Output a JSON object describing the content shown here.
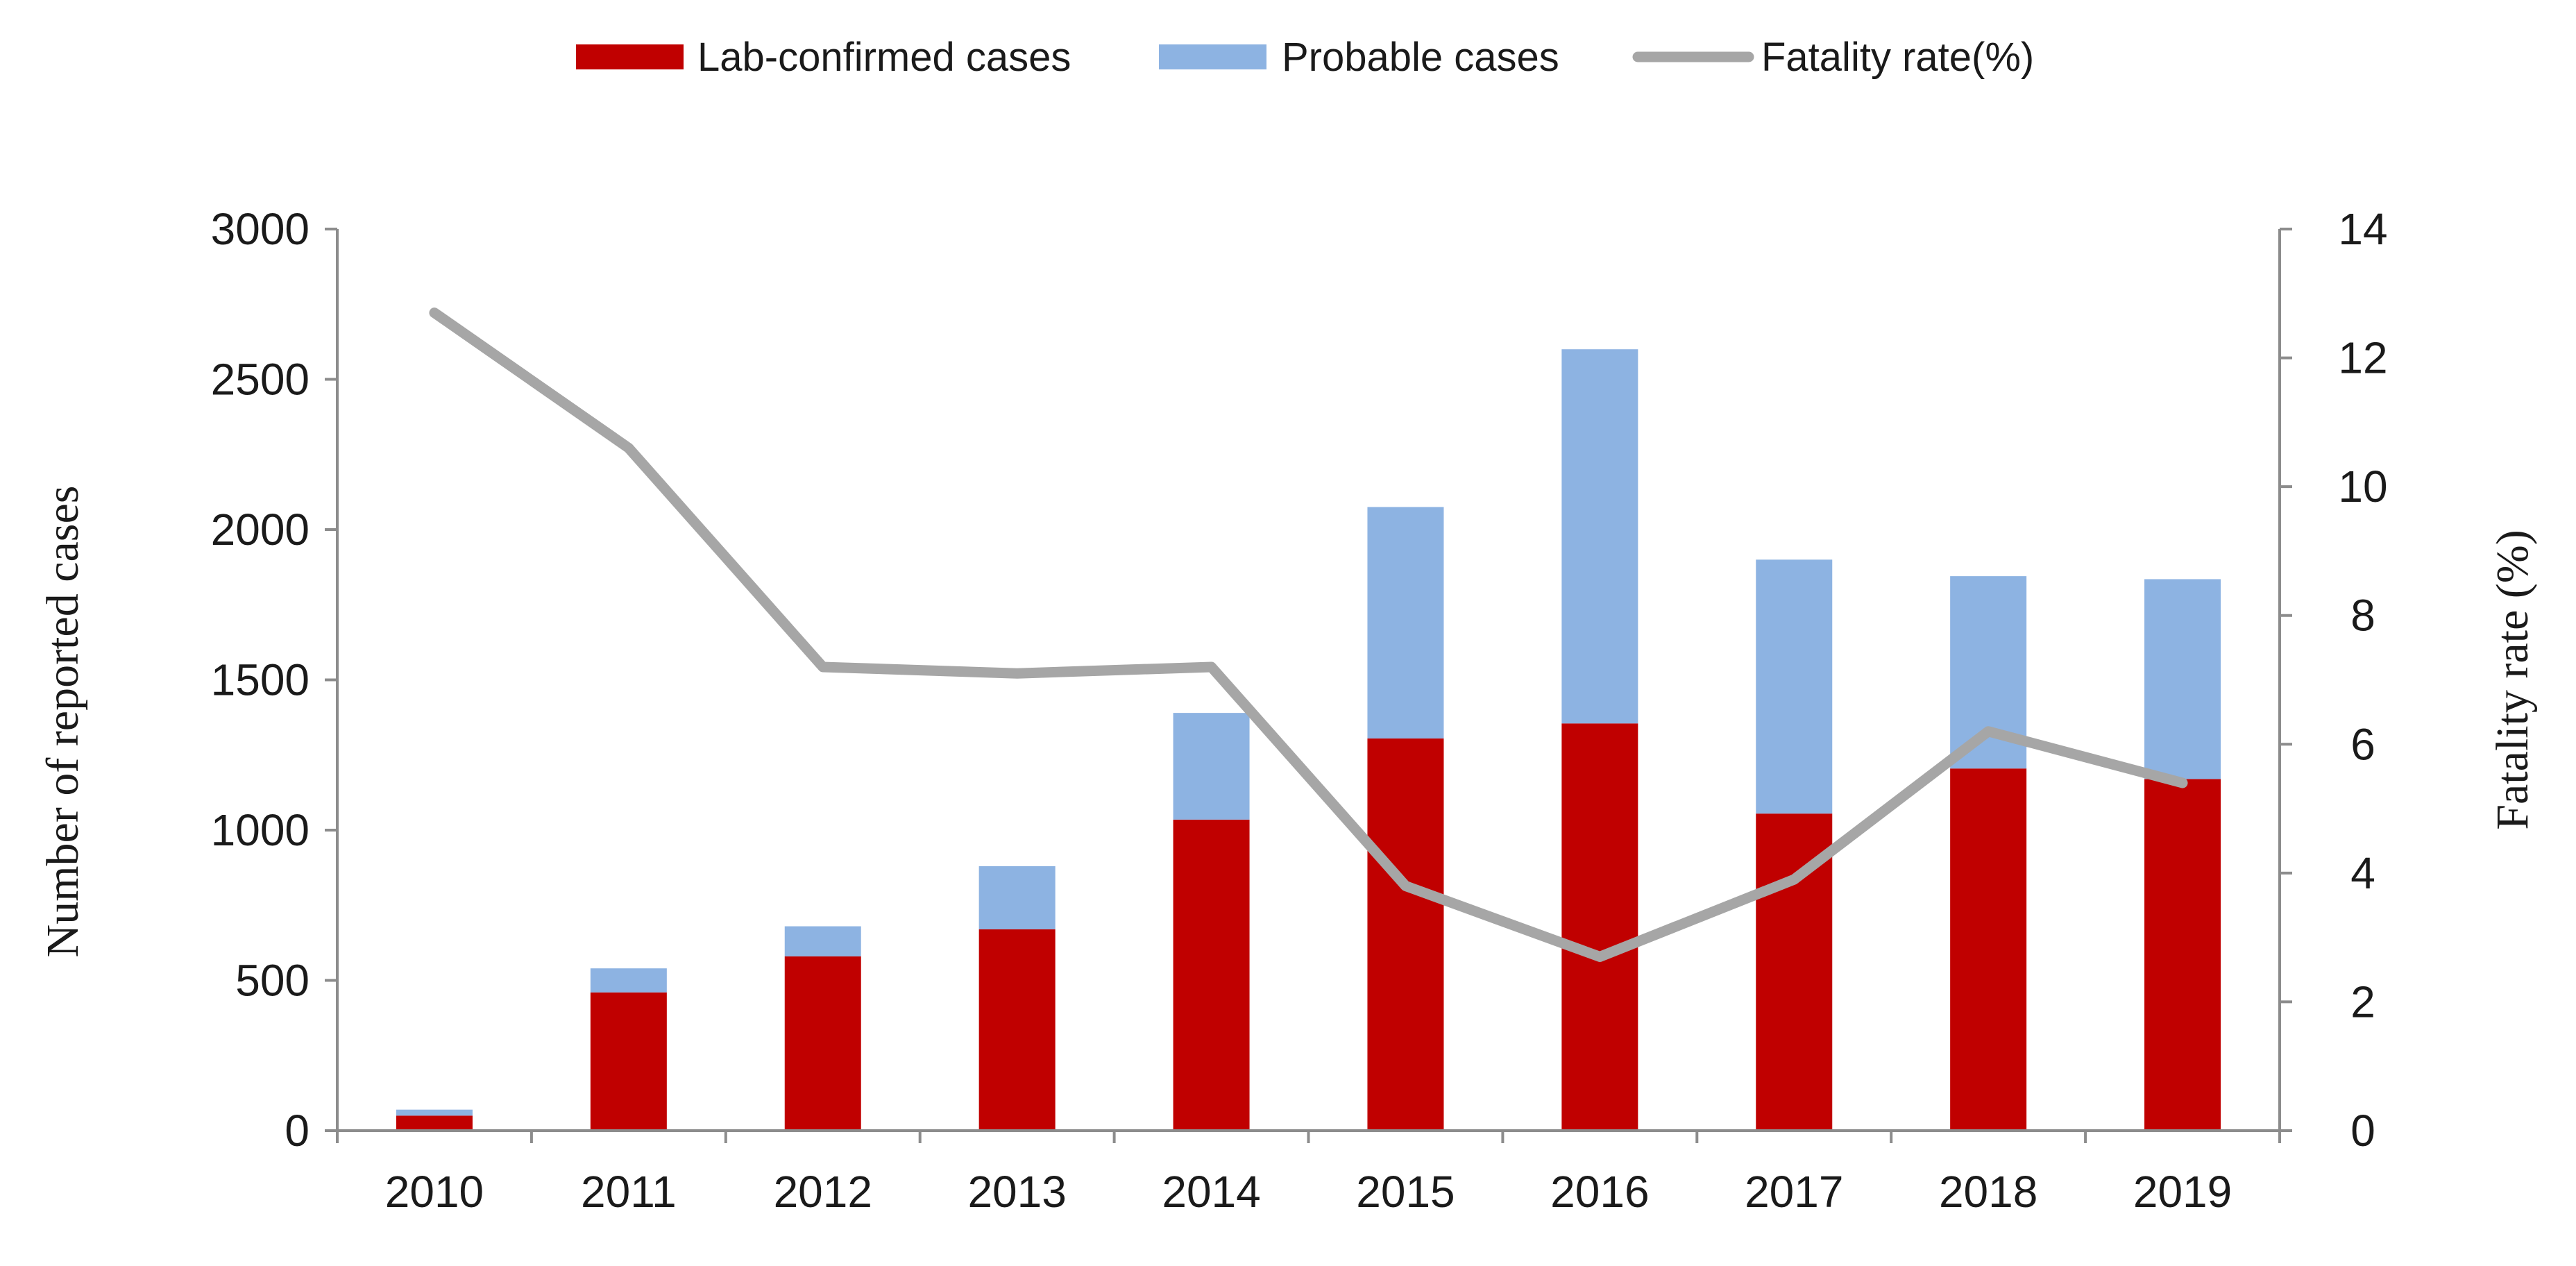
{
  "chart_data": {
    "type": "bar",
    "stacked": true,
    "categories": [
      "2010",
      "2011",
      "2012",
      "2013",
      "2014",
      "2015",
      "2016",
      "2017",
      "2018",
      "2019"
    ],
    "series": [
      {
        "name": "Lab-confirmed cases",
        "kind": "bar",
        "axis": "left",
        "color": "#C00000",
        "values": [
          50,
          460,
          580,
          670,
          1035,
          1305,
          1355,
          1055,
          1205,
          1170
        ]
      },
      {
        "name": "Probable cases",
        "kind": "bar",
        "axis": "left",
        "color": "#8DB3E2",
        "values": [
          20,
          80,
          100,
          210,
          355,
          770,
          1245,
          845,
          640,
          665
        ]
      },
      {
        "name": "Fatality rate(%)",
        "kind": "line",
        "axis": "right",
        "color": "#A6A6A6",
        "values": [
          12.7,
          10.6,
          7.2,
          7.1,
          7.2,
          3.8,
          2.7,
          3.9,
          6.2,
          5.4
        ]
      }
    ],
    "ylabel": "Number of reported cases",
    "y2label": "Fatality rate (%)",
    "ylim": [
      0,
      3000
    ],
    "y2lim": [
      0,
      14
    ],
    "yticks": [
      0,
      500,
      1000,
      1500,
      2000,
      2500,
      3000
    ],
    "y2ticks": [
      0,
      2,
      4,
      6,
      8,
      10,
      12,
      14
    ],
    "legend_position": "top",
    "grid": false
  }
}
